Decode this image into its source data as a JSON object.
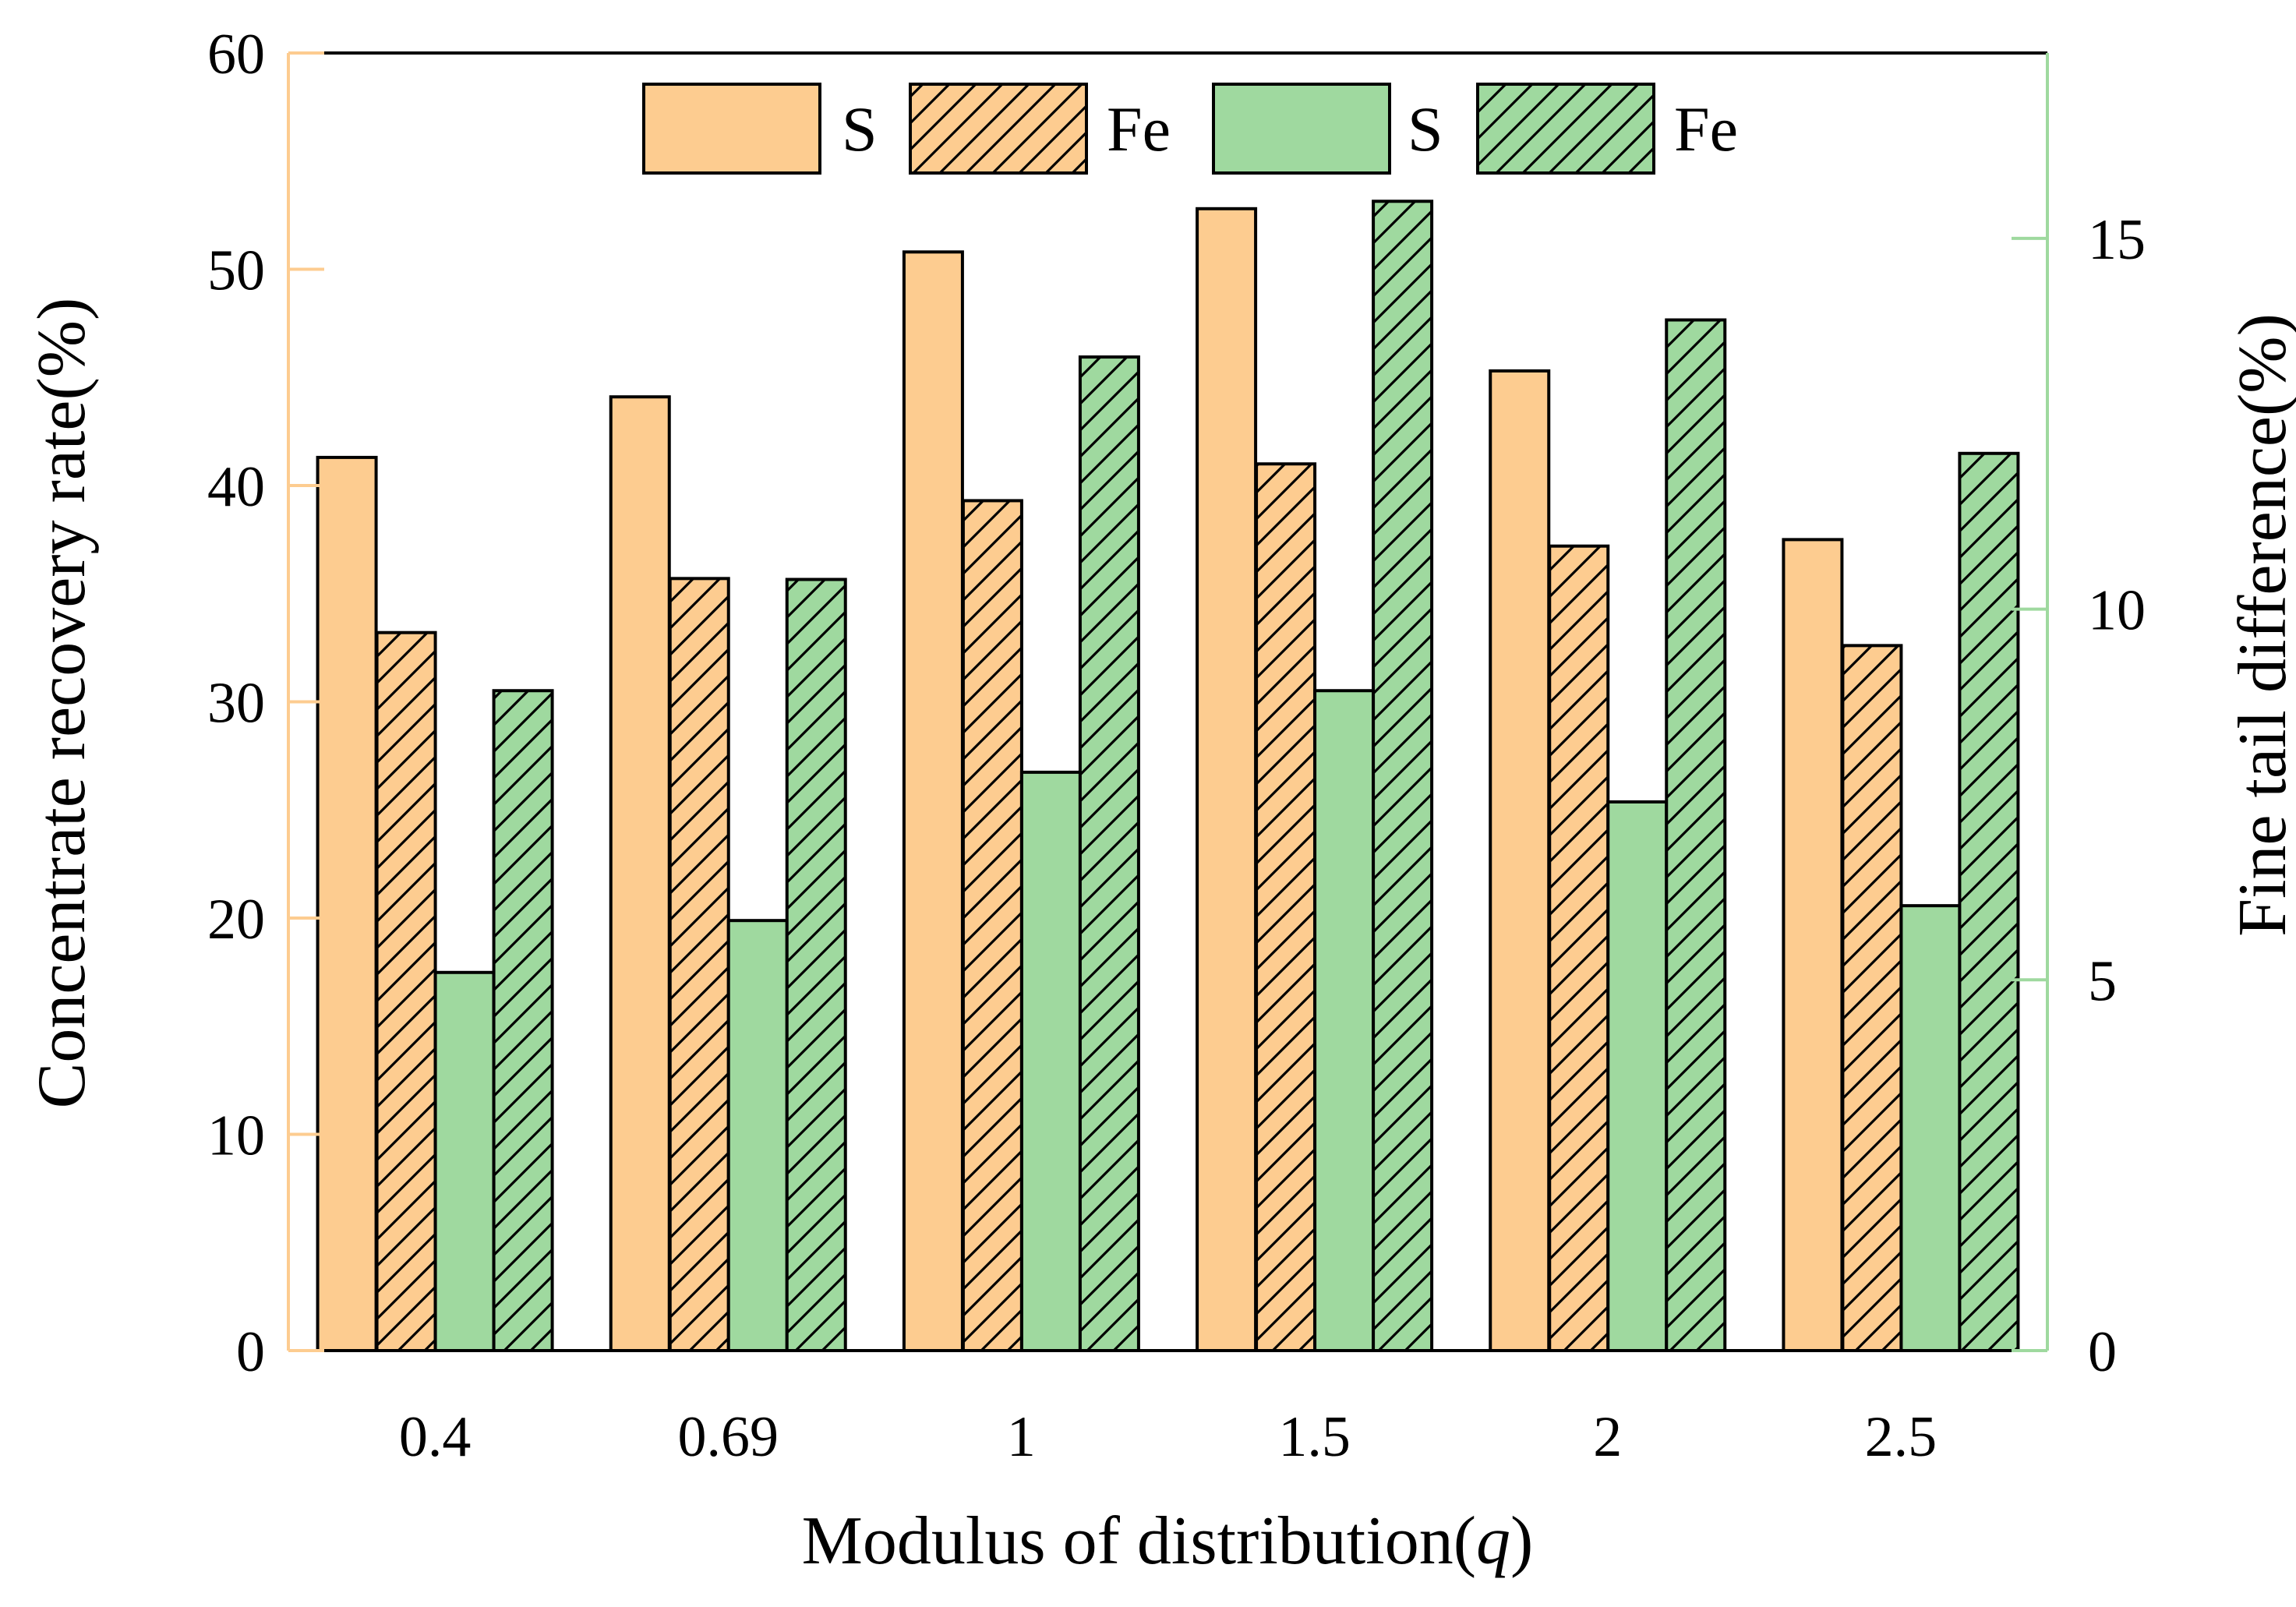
{
  "chart_data": {
    "type": "bar",
    "xlabel_prefix": "Modulus of distribution(",
    "xlabel_var": "q",
    "xlabel_suffix": ")",
    "ylabel_left": "Concentrate recovery rate(%)",
    "ylabel_right": "Fine tail difference(%)",
    "categories": [
      "0.4",
      "0.69",
      "1",
      "1.5",
      "2",
      "2.5"
    ],
    "ylim_left": [
      0,
      60
    ],
    "yticks_left": [
      "0",
      "10",
      "20",
      "30",
      "40",
      "50",
      "60"
    ],
    "ylim_right": [
      0,
      17.5
    ],
    "yticks_right": [
      "0",
      "5",
      "10",
      "15"
    ],
    "series": [
      {
        "name": "S",
        "axis": "left",
        "pattern": "solid",
        "color": "#FDCC90",
        "values": [
          41.3,
          44.1,
          50.8,
          52.8,
          45.3,
          37.5
        ]
      },
      {
        "name": "Fe",
        "axis": "left",
        "pattern": "hatched",
        "color": "#FDCC90",
        "values": [
          33.2,
          35.7,
          39.3,
          41.0,
          37.2,
          32.6
        ]
      },
      {
        "name": "S",
        "axis": "right",
        "pattern": "solid",
        "color": "#9FD99F",
        "values": [
          5.1,
          5.8,
          7.8,
          8.9,
          7.4,
          6.0
        ]
      },
      {
        "name": "Fe",
        "axis": "right",
        "pattern": "hatched",
        "color": "#9FD99F",
        "values": [
          8.9,
          10.4,
          13.4,
          15.5,
          13.9,
          12.1
        ]
      }
    ],
    "left_axis_color": "#FDCC90",
    "right_axis_color": "#9FD99F",
    "legend_position": "top-center"
  }
}
